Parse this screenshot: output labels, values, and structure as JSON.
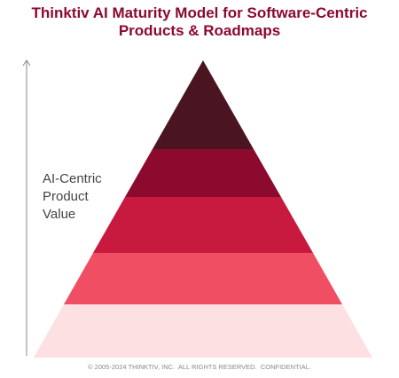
{
  "header": {
    "title_lines": [
      "Thinktiv AI Maturity Model for Software-Centric",
      "Products & Roadmaps"
    ]
  },
  "axis_label": {
    "lines": [
      "AI-Centric",
      "Product",
      "Value"
    ]
  },
  "footer": "© 2005-2024 THINKTIV, INC.  ALL RIGHTS RESERVED.  CONFIDENTIAL."
}
